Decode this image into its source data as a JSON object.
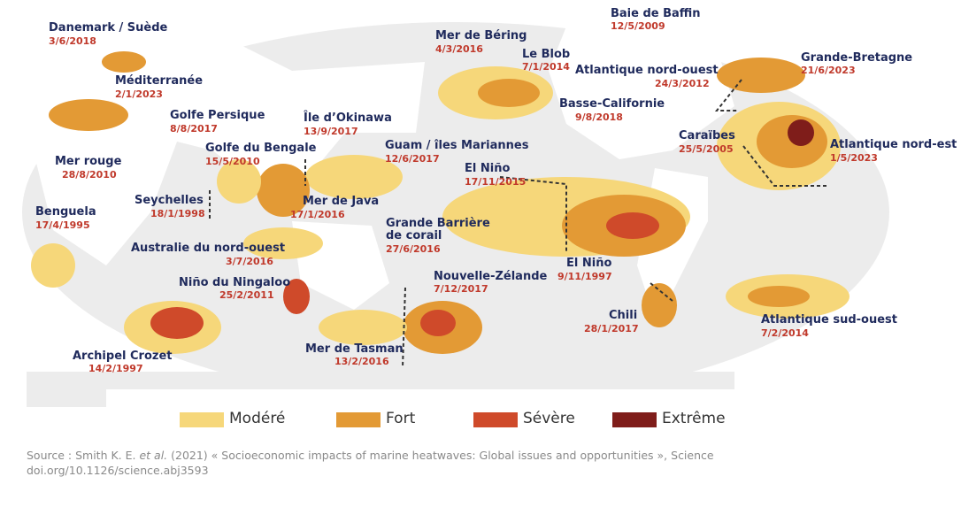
{
  "events": [
    {
      "name": "Danemark / Suède",
      "date": "3/6/2018"
    },
    {
      "name": "Méditerranée",
      "date": "2/1/2023"
    },
    {
      "name": "Golfe Persique",
      "date": "8/8/2017"
    },
    {
      "name": "Mer rouge",
      "date": "28/8/2010"
    },
    {
      "name": "Golfe du Bengale",
      "date": "15/5/2010"
    },
    {
      "name": "Île d’Okinawa",
      "date": "13/9/2017"
    },
    {
      "name": "Guam / îles Mariannes",
      "date": "12/6/2017"
    },
    {
      "name": "Seychelles",
      "date": "18/1/1998"
    },
    {
      "name": "Mer de Java",
      "date": "17/1/2016"
    },
    {
      "name": "Benguela",
      "date": "17/4/1995"
    },
    {
      "name": "Australie du nord-ouest",
      "date": "3/7/2016"
    },
    {
      "name": "Grande Barrière de corail",
      "date": "27/6/2016"
    },
    {
      "name": "Niño du Ningaloo",
      "date": "25/2/2011"
    },
    {
      "name": "Archipel Crozet",
      "date": "14/2/1997"
    },
    {
      "name": "Mer de Tasman",
      "date": "13/2/2016"
    },
    {
      "name": "Nouvelle-Zélande",
      "date": "7/12/2017"
    },
    {
      "name": "Mer de Béring",
      "date": "4/3/2016"
    },
    {
      "name": "Le Blob",
      "date": "7/1/2014"
    },
    {
      "name": "Baie de Baffin",
      "date": "12/5/2009"
    },
    {
      "name": "Atlantique nord-ouest",
      "date": "24/3/2012"
    },
    {
      "name": "Grande-Bretagne",
      "date": "21/6/2023"
    },
    {
      "name": "Basse-Californie",
      "date": "9/8/2018"
    },
    {
      "name": "Caraïbes",
      "date": "25/5/2005"
    },
    {
      "name": "Atlantique nord-est",
      "date": "1/5/2023"
    },
    {
      "name": "El Niño",
      "date": "17/11/2015"
    },
    {
      "name": "El Niño",
      "date": "9/11/1997"
    },
    {
      "name": "Chili",
      "date": "28/1/2017"
    },
    {
      "name": "Atlantique sud-ouest",
      "date": "7/2/2014"
    }
  ],
  "legend": [
    {
      "label": "Modéré",
      "color": "#f6d77a"
    },
    {
      "label": "Fort",
      "color": "#e39a35"
    },
    {
      "label": "Sévère",
      "color": "#cf4a2a"
    },
    {
      "label": "Extrême",
      "color": "#7f1d1a"
    }
  ],
  "source": {
    "prefix": "Source : Smith K. E. ",
    "italic": "et al.",
    "rest": " (2021) « Socioeconomic impacts of marine heatwaves: Global issues and opportunities », Science",
    "doi": "doi.org/10.1126/science.abj3593"
  }
}
